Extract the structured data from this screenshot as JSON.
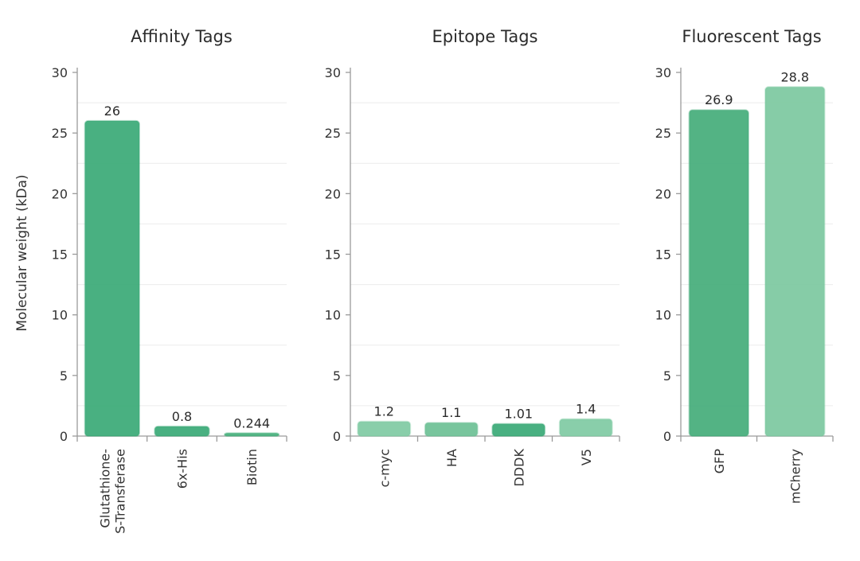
{
  "chart_data": [
    {
      "type": "bar",
      "title": "Affinity Tags",
      "ylabel": "Molecular weight (kDa)",
      "ylim": [
        0,
        30
      ],
      "yticks": [
        0,
        5,
        10,
        15,
        20,
        25,
        30
      ],
      "categories": [
        [
          "Glutathione-",
          "S-Transferase"
        ],
        [
          "6x-His"
        ],
        [
          "Biotin"
        ]
      ],
      "values": [
        26,
        0.8,
        0.244
      ],
      "labels": [
        "26",
        "0.8",
        "0.244"
      ],
      "colors": [
        "#3aa976",
        "#3aa976",
        "#46b07c"
      ]
    },
    {
      "type": "bar",
      "title": "Epitope Tags",
      "ylim": [
        0,
        30
      ],
      "yticks": [
        0,
        5,
        10,
        15,
        20,
        25,
        30
      ],
      "categories": [
        [
          "c-myc"
        ],
        [
          "HA"
        ],
        [
          "DDDK"
        ],
        [
          "V5"
        ]
      ],
      "values": [
        1.2,
        1.1,
        1.01,
        1.4
      ],
      "labels": [
        "1.2",
        "1.1",
        "1.01",
        "1.4"
      ],
      "colors": [
        "#7fcaa3",
        "#6cc095",
        "#3aa976",
        "#7fcaa3"
      ]
    },
    {
      "type": "bar",
      "title": "Fluorescent Tags",
      "ylim": [
        0,
        30
      ],
      "yticks": [
        0,
        5,
        10,
        15,
        20,
        25,
        30
      ],
      "categories": [
        [
          "GFP"
        ],
        [
          "mCherry"
        ]
      ],
      "values": [
        26.9,
        28.8
      ],
      "labels": [
        "26.9",
        "28.8"
      ],
      "colors": [
        "#44ad7a",
        "#7cc8a0"
      ]
    }
  ]
}
